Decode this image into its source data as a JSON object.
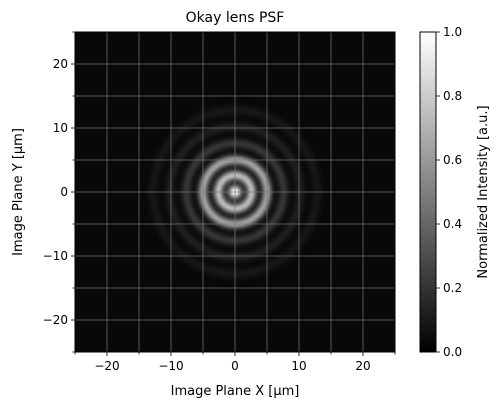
{
  "chart_data": {
    "type": "heatmap",
    "title": "Okay lens PSF",
    "xlabel": "Image Plane X [μm]",
    "ylabel": "Image Plane Y [μm]",
    "xlim": [
      -25,
      25
    ],
    "ylim": [
      -25,
      25
    ],
    "x_ticks": [
      -20,
      -10,
      0,
      10,
      20
    ],
    "y_ticks": [
      -20,
      -10,
      0,
      10,
      20
    ],
    "x_tick_labels": [
      "−20",
      "−10",
      "0",
      "10",
      "20"
    ],
    "y_tick_labels": [
      "−20",
      "−10",
      "0",
      "10",
      "20"
    ],
    "grid": true,
    "colormap": "gray",
    "colorbar": {
      "label": "Normalized Intensity [a.u.]",
      "range": [
        0.0,
        1.0
      ],
      "ticks": [
        0.0,
        0.2,
        0.4,
        0.6,
        0.8,
        1.0
      ],
      "tick_labels": [
        "0.0",
        "0.2",
        "0.4",
        "0.6",
        "0.8",
        "1.0"
      ]
    },
    "psf": {
      "center": [
        0,
        0
      ],
      "peak_intensity": 1.0,
      "rings": [
        {
          "radius": 2.6,
          "intensity": 0.7
        },
        {
          "radius": 5.0,
          "intensity": 0.6
        },
        {
          "radius": 7.6,
          "intensity": 0.18
        },
        {
          "radius": 10.2,
          "intensity": 0.09
        },
        {
          "radius": 12.8,
          "intensity": 0.06
        }
      ]
    }
  }
}
